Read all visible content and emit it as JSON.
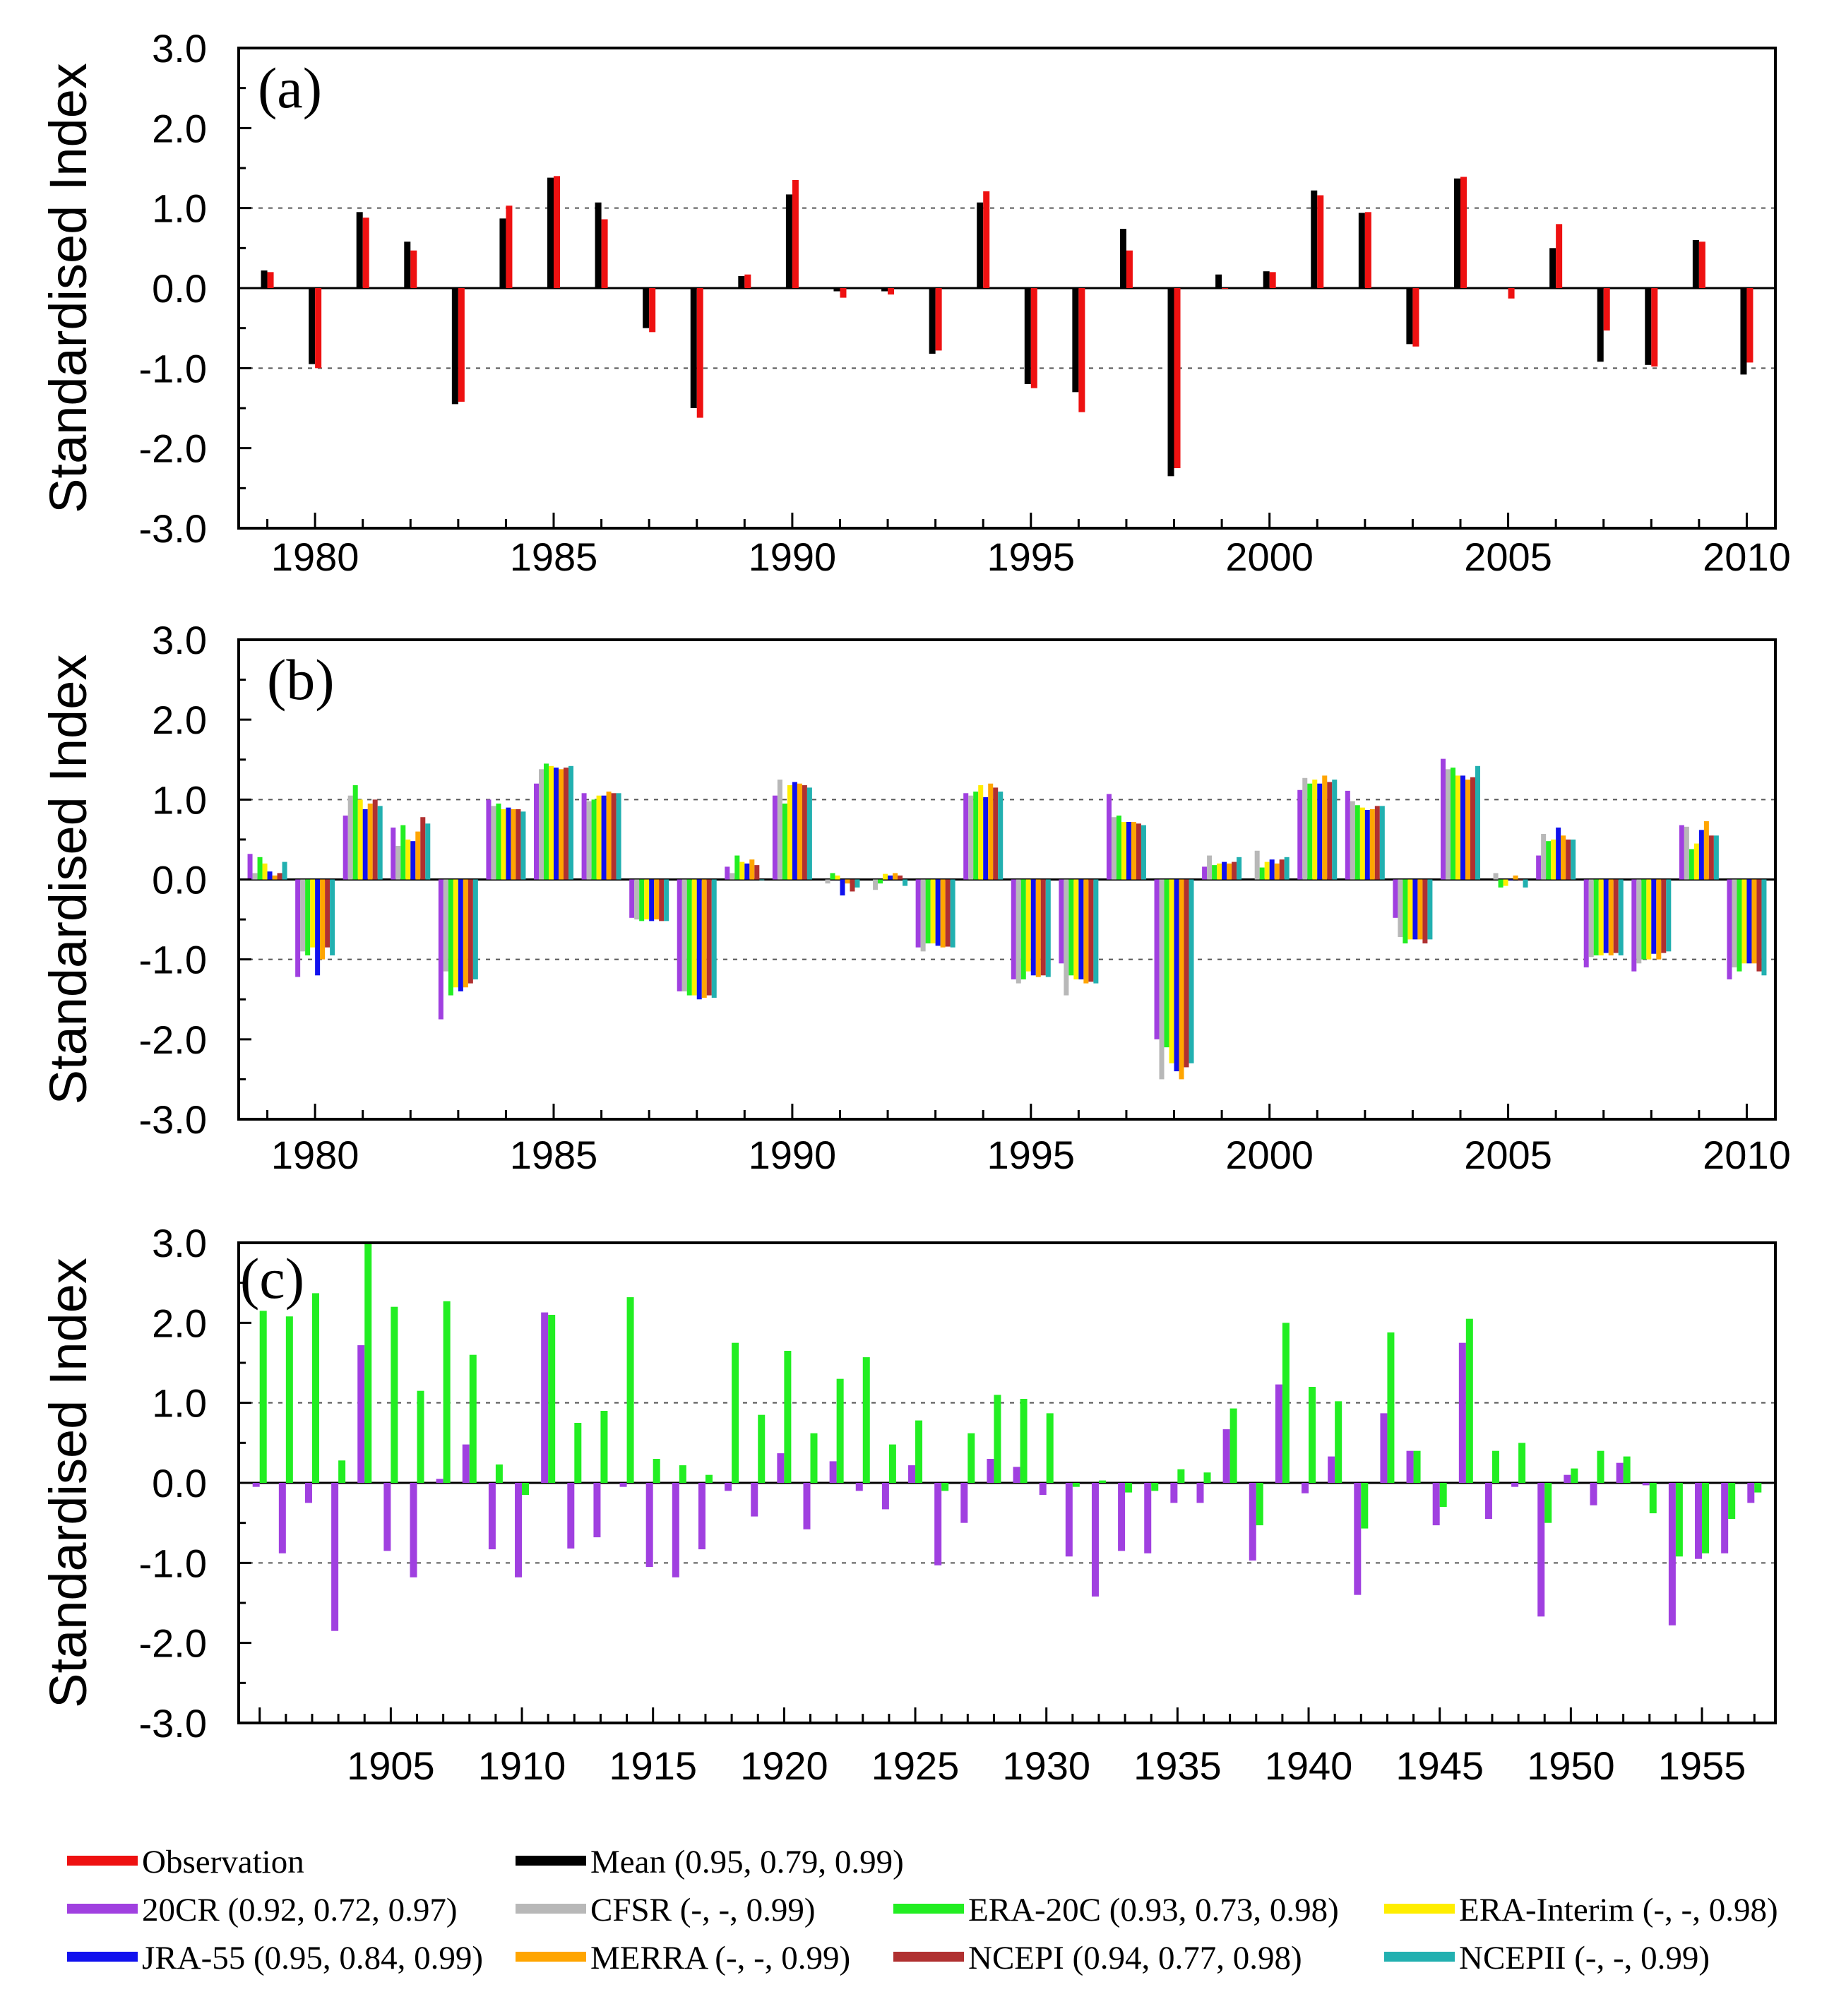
{
  "chart_data": [
    {
      "panel": "(a)",
      "type": "bar",
      "ylabel": "Standardised Index",
      "ylim": [
        -3.0,
        3.0
      ],
      "yticks": [
        "3.0",
        "2.0",
        "1.0",
        "0.0",
        "-1.0",
        "-2.0",
        "-3.0"
      ],
      "gridlines_dashed": [
        -1.0,
        1.0
      ],
      "x": [
        1979,
        1980,
        1981,
        1982,
        1983,
        1984,
        1985,
        1986,
        1987,
        1988,
        1989,
        1990,
        1991,
        1992,
        1993,
        1994,
        1995,
        1996,
        1997,
        1998,
        1999,
        2000,
        2001,
        2002,
        2003,
        2004,
        2005,
        2006,
        2007,
        2008,
        2009,
        2010
      ],
      "xlim": [
        1978.4,
        2010.6
      ],
      "xtick_labels": [
        "1980",
        "1985",
        "1990",
        "1995",
        "2000",
        "2005",
        "2010"
      ],
      "series": [
        {
          "name": "Mean",
          "color": "#000000",
          "values": [
            0.22,
            -0.95,
            0.95,
            0.58,
            -1.45,
            0.87,
            1.38,
            1.07,
            -0.5,
            -1.5,
            0.15,
            1.17,
            -0.04,
            -0.04,
            -0.82,
            1.07,
            -1.2,
            -1.3,
            0.74,
            -2.35,
            0.17,
            0.21,
            1.22,
            0.94,
            -0.7,
            1.37,
            0.0,
            0.5,
            -0.92,
            -0.96,
            0.6,
            -1.08
          ]
        },
        {
          "name": "Observation",
          "color": "#ee1111",
          "values": [
            0.2,
            -1.0,
            0.88,
            0.47,
            -1.42,
            1.03,
            1.4,
            0.86,
            -0.55,
            -1.62,
            0.17,
            1.35,
            -0.12,
            -0.08,
            -0.78,
            1.21,
            -1.25,
            -1.55,
            0.47,
            -2.25,
            0.0,
            0.2,
            1.16,
            0.95,
            -0.73,
            1.39,
            -0.13,
            0.8,
            -0.53,
            -0.98,
            0.58,
            -0.93
          ]
        }
      ]
    },
    {
      "panel": "(b)",
      "type": "bar",
      "ylabel": "Standardised Index",
      "ylim": [
        -3.0,
        3.0
      ],
      "yticks": [
        "3.0",
        "2.0",
        "1.0",
        "0.0",
        "-1.0",
        "-2.0",
        "-3.0"
      ],
      "gridlines_dashed": [
        -1.0,
        1.0
      ],
      "x": [
        1979,
        1980,
        1981,
        1982,
        1983,
        1984,
        1985,
        1986,
        1987,
        1988,
        1989,
        1990,
        1991,
        1992,
        1993,
        1994,
        1995,
        1996,
        1997,
        1998,
        1999,
        2000,
        2001,
        2002,
        2003,
        2004,
        2005,
        2006,
        2007,
        2008,
        2009,
        2010
      ],
      "xlim": [
        1978.4,
        2010.6
      ],
      "xtick_labels": [
        "1980",
        "1985",
        "1990",
        "1995",
        "2000",
        "2005",
        "2010"
      ],
      "series": [
        {
          "name": "20CR",
          "color": "#a040e0",
          "values": [
            0.32,
            -1.22,
            0.8,
            0.65,
            -1.75,
            1.0,
            1.2,
            1.08,
            -0.48,
            -1.4,
            0.16,
            1.05,
            null,
            null,
            -0.85,
            1.08,
            -1.25,
            -1.05,
            1.07,
            -2.0,
            0.16,
            null,
            1.12,
            1.11,
            -0.48,
            1.51,
            null,
            0.3,
            -1.1,
            -1.15,
            0.68,
            -1.25
          ]
        },
        {
          "name": "CFSR",
          "color": "#b8b8b8",
          "values": [
            0.08,
            -0.9,
            1.05,
            0.42,
            -1.15,
            0.92,
            1.38,
            0.98,
            -0.5,
            -1.4,
            0.08,
            1.25,
            -0.05,
            -0.13,
            -0.9,
            1.05,
            -1.3,
            -1.45,
            0.78,
            -2.5,
            0.3,
            0.36,
            1.27,
            0.98,
            -0.72,
            1.38,
            0.08,
            0.57,
            -0.97,
            -1.05,
            0.66,
            -1.1
          ]
        },
        {
          "name": "ERA-20C",
          "color": "#22ee22",
          "values": [
            0.28,
            -0.95,
            1.18,
            0.68,
            -1.45,
            0.95,
            1.45,
            1.0,
            -0.52,
            -1.45,
            0.3,
            0.95,
            0.08,
            -0.05,
            -0.8,
            1.1,
            -1.25,
            -1.2,
            0.8,
            -2.1,
            0.18,
            0.15,
            1.2,
            0.93,
            -0.8,
            1.4,
            -0.1,
            0.48,
            -0.95,
            -1.0,
            0.38,
            -1.15
          ]
        },
        {
          "name": "ERA-Interim",
          "color": "#ffee00",
          "values": [
            0.2,
            -0.85,
            1.0,
            0.5,
            -1.35,
            0.88,
            1.42,
            1.05,
            -0.5,
            -1.45,
            0.22,
            1.18,
            0.05,
            0.07,
            -0.8,
            1.18,
            -1.15,
            -1.25,
            0.72,
            -2.3,
            0.2,
            0.22,
            1.25,
            0.9,
            -0.75,
            1.3,
            -0.08,
            0.5,
            -0.95,
            -1.0,
            0.45,
            -1.05
          ]
        },
        {
          "name": "JRA-55",
          "color": "#1111ee",
          "values": [
            0.1,
            -1.2,
            0.88,
            0.48,
            -1.4,
            0.9,
            1.4,
            1.05,
            -0.52,
            -1.5,
            0.2,
            1.22,
            -0.2,
            0.05,
            -0.83,
            1.03,
            -1.2,
            -1.25,
            0.72,
            -2.4,
            0.22,
            0.25,
            1.2,
            0.87,
            -0.75,
            1.3,
            0.0,
            0.65,
            -0.92,
            -0.93,
            0.62,
            -1.05
          ]
        },
        {
          "name": "MERRA",
          "color": "#ffa500",
          "values": [
            0.05,
            -1.0,
            0.95,
            0.6,
            -1.35,
            0.88,
            1.38,
            1.1,
            -0.5,
            -1.48,
            0.25,
            1.2,
            -0.05,
            0.08,
            -0.85,
            1.2,
            -1.22,
            -1.3,
            0.72,
            -2.5,
            0.2,
            0.2,
            1.3,
            0.88,
            -0.75,
            1.25,
            0.05,
            0.55,
            -0.95,
            -1.0,
            0.73,
            -1.05
          ]
        },
        {
          "name": "NCEPI",
          "color": "#b03030",
          "values": [
            0.08,
            -0.85,
            1.0,
            0.78,
            -1.3,
            0.88,
            1.4,
            1.08,
            -0.52,
            -1.45,
            0.18,
            1.18,
            -0.15,
            0.05,
            -0.84,
            1.15,
            -1.2,
            -1.28,
            0.7,
            -2.35,
            0.22,
            0.25,
            1.22,
            0.92,
            -0.8,
            1.28,
            0.0,
            0.5,
            -0.92,
            -0.92,
            0.55,
            -1.15
          ]
        },
        {
          "name": "NCEPII",
          "color": "#22b0b0",
          "values": [
            0.22,
            -0.95,
            0.92,
            0.7,
            -1.25,
            0.85,
            1.42,
            1.08,
            -0.52,
            -1.48,
            0.0,
            1.15,
            -0.1,
            -0.08,
            -0.85,
            1.1,
            -1.22,
            -1.3,
            0.68,
            -2.3,
            0.28,
            0.28,
            1.25,
            0.92,
            -0.75,
            1.42,
            -0.1,
            0.5,
            -0.95,
            -0.9,
            0.55,
            -1.2
          ]
        }
      ]
    },
    {
      "panel": "(c)",
      "type": "bar",
      "ylabel": "Standardised Index",
      "ylim": [
        -3.0,
        3.0
      ],
      "yticks": [
        "3.0",
        "2.0",
        "1.0",
        "0.0",
        "-1.0",
        "-2.0",
        "-3.0"
      ],
      "gridlines_dashed": [
        -1.0,
        1.0
      ],
      "x": [
        1900,
        1901,
        1902,
        1903,
        1904,
        1905,
        1906,
        1907,
        1908,
        1909,
        1910,
        1911,
        1912,
        1913,
        1914,
        1915,
        1916,
        1917,
        1918,
        1919,
        1920,
        1921,
        1922,
        1923,
        1924,
        1925,
        1926,
        1927,
        1928,
        1929,
        1930,
        1931,
        1932,
        1933,
        1934,
        1935,
        1936,
        1937,
        1938,
        1939,
        1940,
        1941,
        1942,
        1943,
        1944,
        1945,
        1946,
        1947,
        1948,
        1949,
        1950,
        1951,
        1952,
        1953,
        1954,
        1955,
        1956,
        1957
      ],
      "xlim": [
        1899.2,
        1957.8
      ],
      "xtick_labels": [
        "1905",
        "1910",
        "1915",
        "1920",
        "1925",
        "1930",
        "1935",
        "1940",
        "1945",
        "1950",
        "1955"
      ],
      "series": [
        {
          "name": "20CR",
          "color": "#a040e0",
          "values": [
            -0.05,
            -0.88,
            -0.25,
            -1.85,
            1.72,
            -0.85,
            -1.18,
            0.05,
            0.48,
            -0.83,
            -1.18,
            2.13,
            -0.82,
            -0.68,
            -0.05,
            -1.05,
            -1.18,
            -0.83,
            -0.1,
            -0.42,
            0.37,
            -0.58,
            0.27,
            -0.1,
            -0.33,
            0.22,
            -1.03,
            -0.5,
            0.3,
            0.2,
            -0.15,
            -0.92,
            -1.42,
            -0.85,
            -0.88,
            -0.25,
            -0.25,
            0.67,
            -0.97,
            1.23,
            -0.13,
            0.33,
            -1.4,
            0.87,
            0.4,
            -0.53,
            1.75,
            -0.45,
            -0.05,
            -1.67,
            0.1,
            -0.28,
            0.25,
            -0.03,
            -1.78,
            -0.95,
            -0.88,
            -0.25
          ]
        },
        {
          "name": "ERA-20C",
          "color": "#22ee22",
          "values": [
            2.15,
            2.08,
            2.37,
            0.28,
            3.0,
            2.2,
            1.15,
            2.27,
            1.6,
            0.23,
            -0.15,
            2.1,
            0.75,
            0.9,
            2.32,
            0.3,
            0.22,
            0.1,
            1.75,
            0.85,
            1.65,
            0.62,
            1.3,
            1.57,
            0.48,
            0.78,
            -0.1,
            0.62,
            1.1,
            1.05,
            0.87,
            -0.05,
            0.03,
            -0.12,
            -0.1,
            0.17,
            0.13,
            0.93,
            -0.53,
            2.0,
            1.2,
            1.02,
            -0.57,
            1.88,
            0.4,
            -0.3,
            2.05,
            0.4,
            0.5,
            -0.5,
            0.18,
            0.4,
            0.33,
            -0.38,
            -0.92,
            -0.88,
            -0.45,
            -0.12
          ]
        }
      ]
    }
  ],
  "panel_labels": [
    "(a)",
    "(b)",
    "(c)"
  ],
  "ylabel": "Standardised Index",
  "legend": [
    {
      "label": "Observation",
      "color": "#ee1111"
    },
    {
      "label": "Mean (0.95, 0.79, 0.99)",
      "color": "#000000"
    },
    {
      "label": "20CR (0.92, 0.72, 0.97)",
      "color": "#a040e0"
    },
    {
      "label": "CFSR (-, -, 0.99)",
      "color": "#b8b8b8"
    },
    {
      "label": "ERA-20C (0.93, 0.73, 0.98)",
      "color": "#22ee22"
    },
    {
      "label": "ERA-Interim  (-, -, 0.98)",
      "color": "#ffee00"
    },
    {
      "label": "JRA-55 (0.95, 0.84, 0.99)",
      "color": "#1111ee"
    },
    {
      "label": "MERRA (-, -, 0.99)",
      "color": "#ffa500"
    },
    {
      "label": "NCEPI (0.94, 0.77, 0.98)",
      "color": "#b03030"
    },
    {
      "label": "NCEPII (-, -, 0.99)",
      "color": "#22b0b0"
    }
  ]
}
